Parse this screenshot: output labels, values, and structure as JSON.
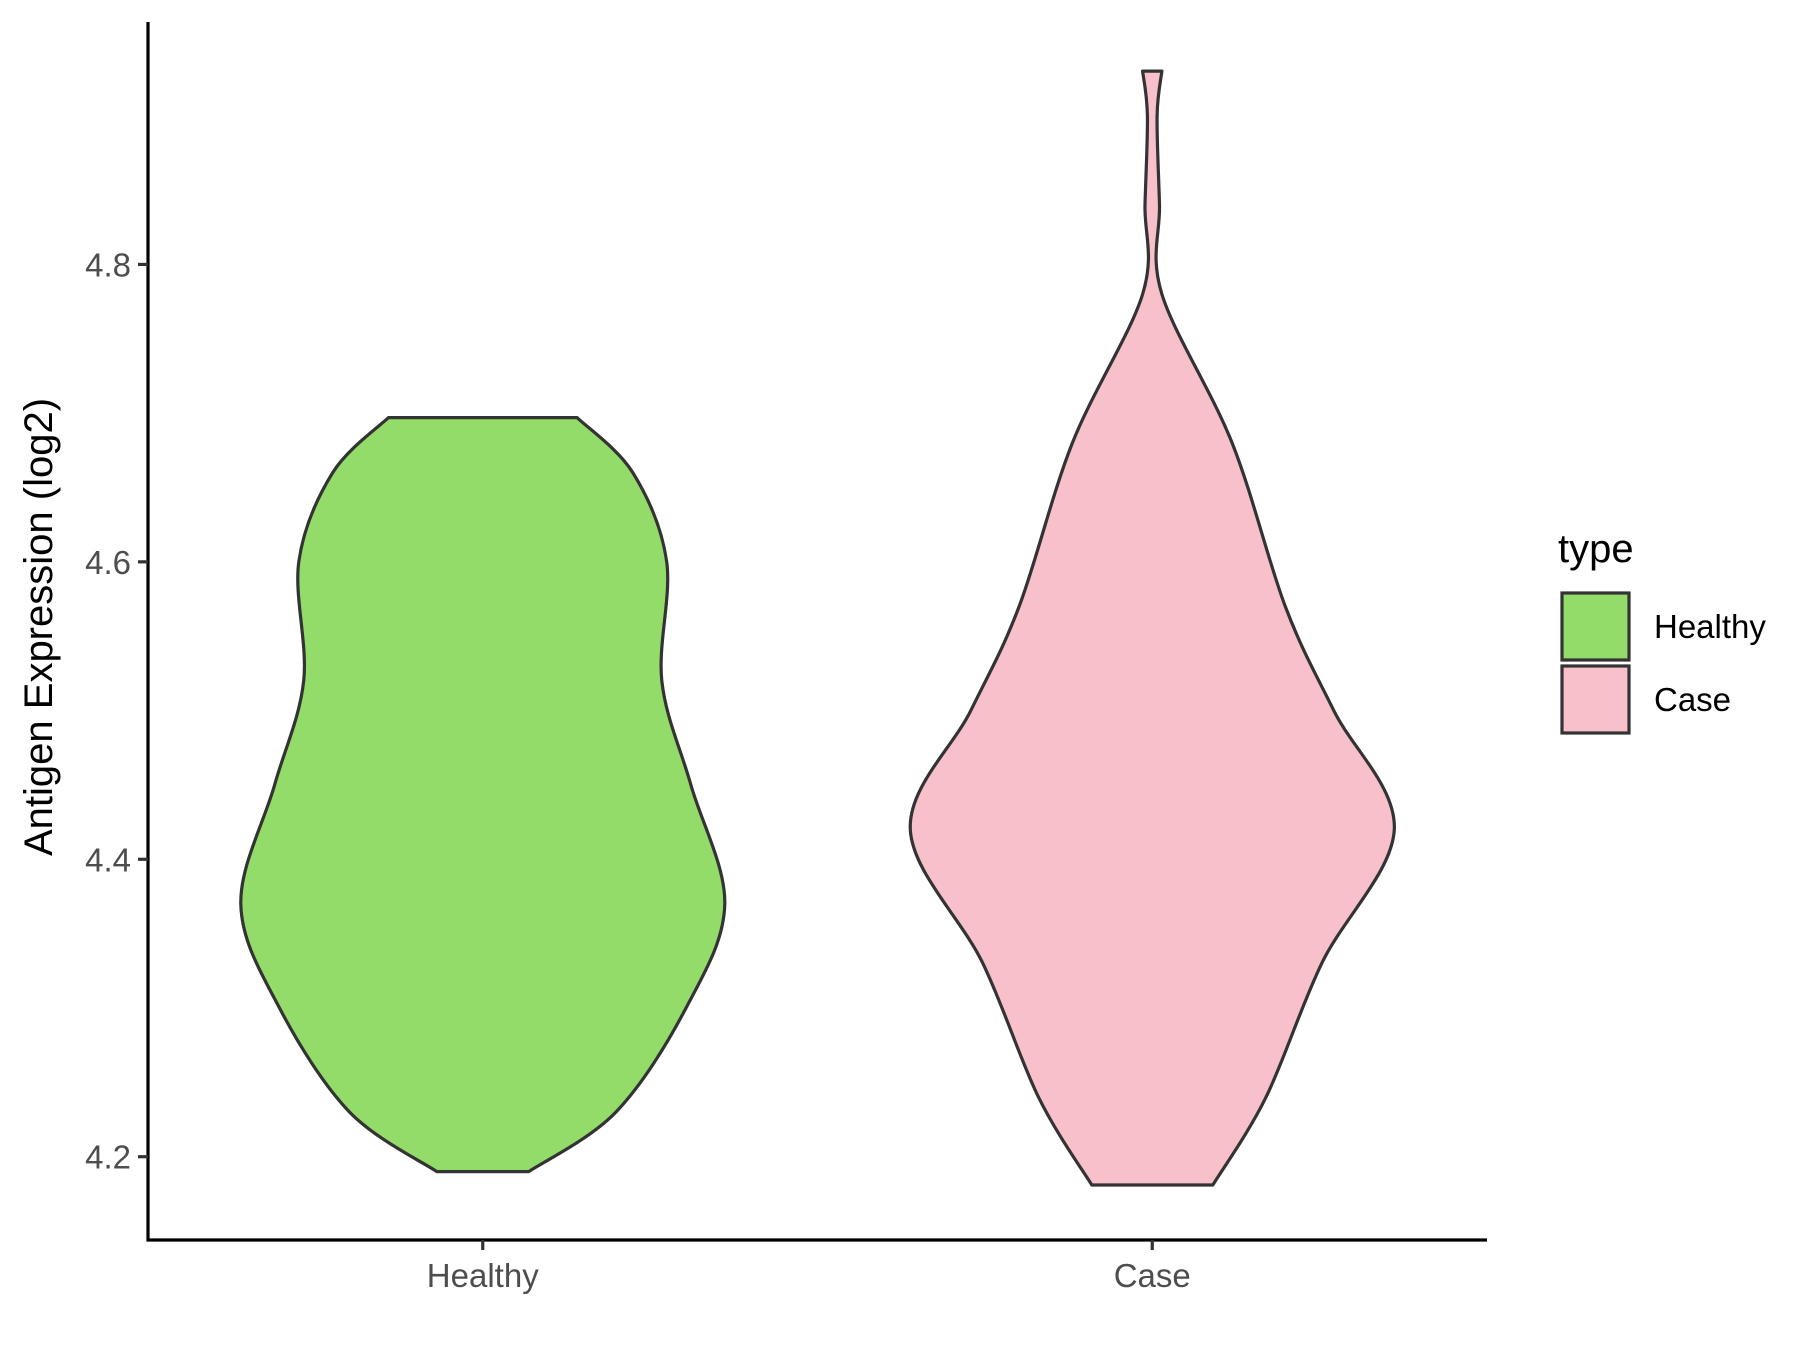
{
  "chart_data": {
    "type": "violin",
    "title": "",
    "xlabel": "",
    "ylabel": "Antigen Expression (log2)",
    "categories": [
      "Healthy",
      "Case"
    ],
    "ylim": [
      4.144,
      4.963
    ],
    "yticks": [
      4.2,
      4.4,
      4.6,
      4.8
    ],
    "ytick_labels": [
      "4.2",
      "4.4",
      "4.6",
      "4.8"
    ],
    "grid": false,
    "legend": {
      "title": "type",
      "position": "right",
      "entries": [
        {
          "label": "Healthy",
          "color": "#93DC6A"
        },
        {
          "label": "Case",
          "color": "#F7C0CB"
        }
      ]
    },
    "series": [
      {
        "category": "Healthy",
        "color": "#93DC6A",
        "y_min": 4.19,
        "y_max": 4.697,
        "density_profile": [
          [
            4.19,
            0.19
          ],
          [
            4.23,
            0.55
          ],
          [
            4.3,
            0.84
          ],
          [
            4.37,
            1.0
          ],
          [
            4.45,
            0.86
          ],
          [
            4.52,
            0.74
          ],
          [
            4.6,
            0.76
          ],
          [
            4.66,
            0.62
          ],
          [
            4.697,
            0.39
          ]
        ]
      },
      {
        "category": "Case",
        "color": "#F7C0CB",
        "y_min": 4.181,
        "y_max": 4.93,
        "density_profile": [
          [
            4.181,
            0.25
          ],
          [
            4.24,
            0.47
          ],
          [
            4.33,
            0.7
          ],
          [
            4.42,
            1.0
          ],
          [
            4.5,
            0.75
          ],
          [
            4.57,
            0.55
          ],
          [
            4.68,
            0.33
          ],
          [
            4.78,
            0.04
          ],
          [
            4.84,
            0.03
          ],
          [
            4.9,
            0.02
          ],
          [
            4.93,
            0.04
          ]
        ]
      }
    ]
  }
}
